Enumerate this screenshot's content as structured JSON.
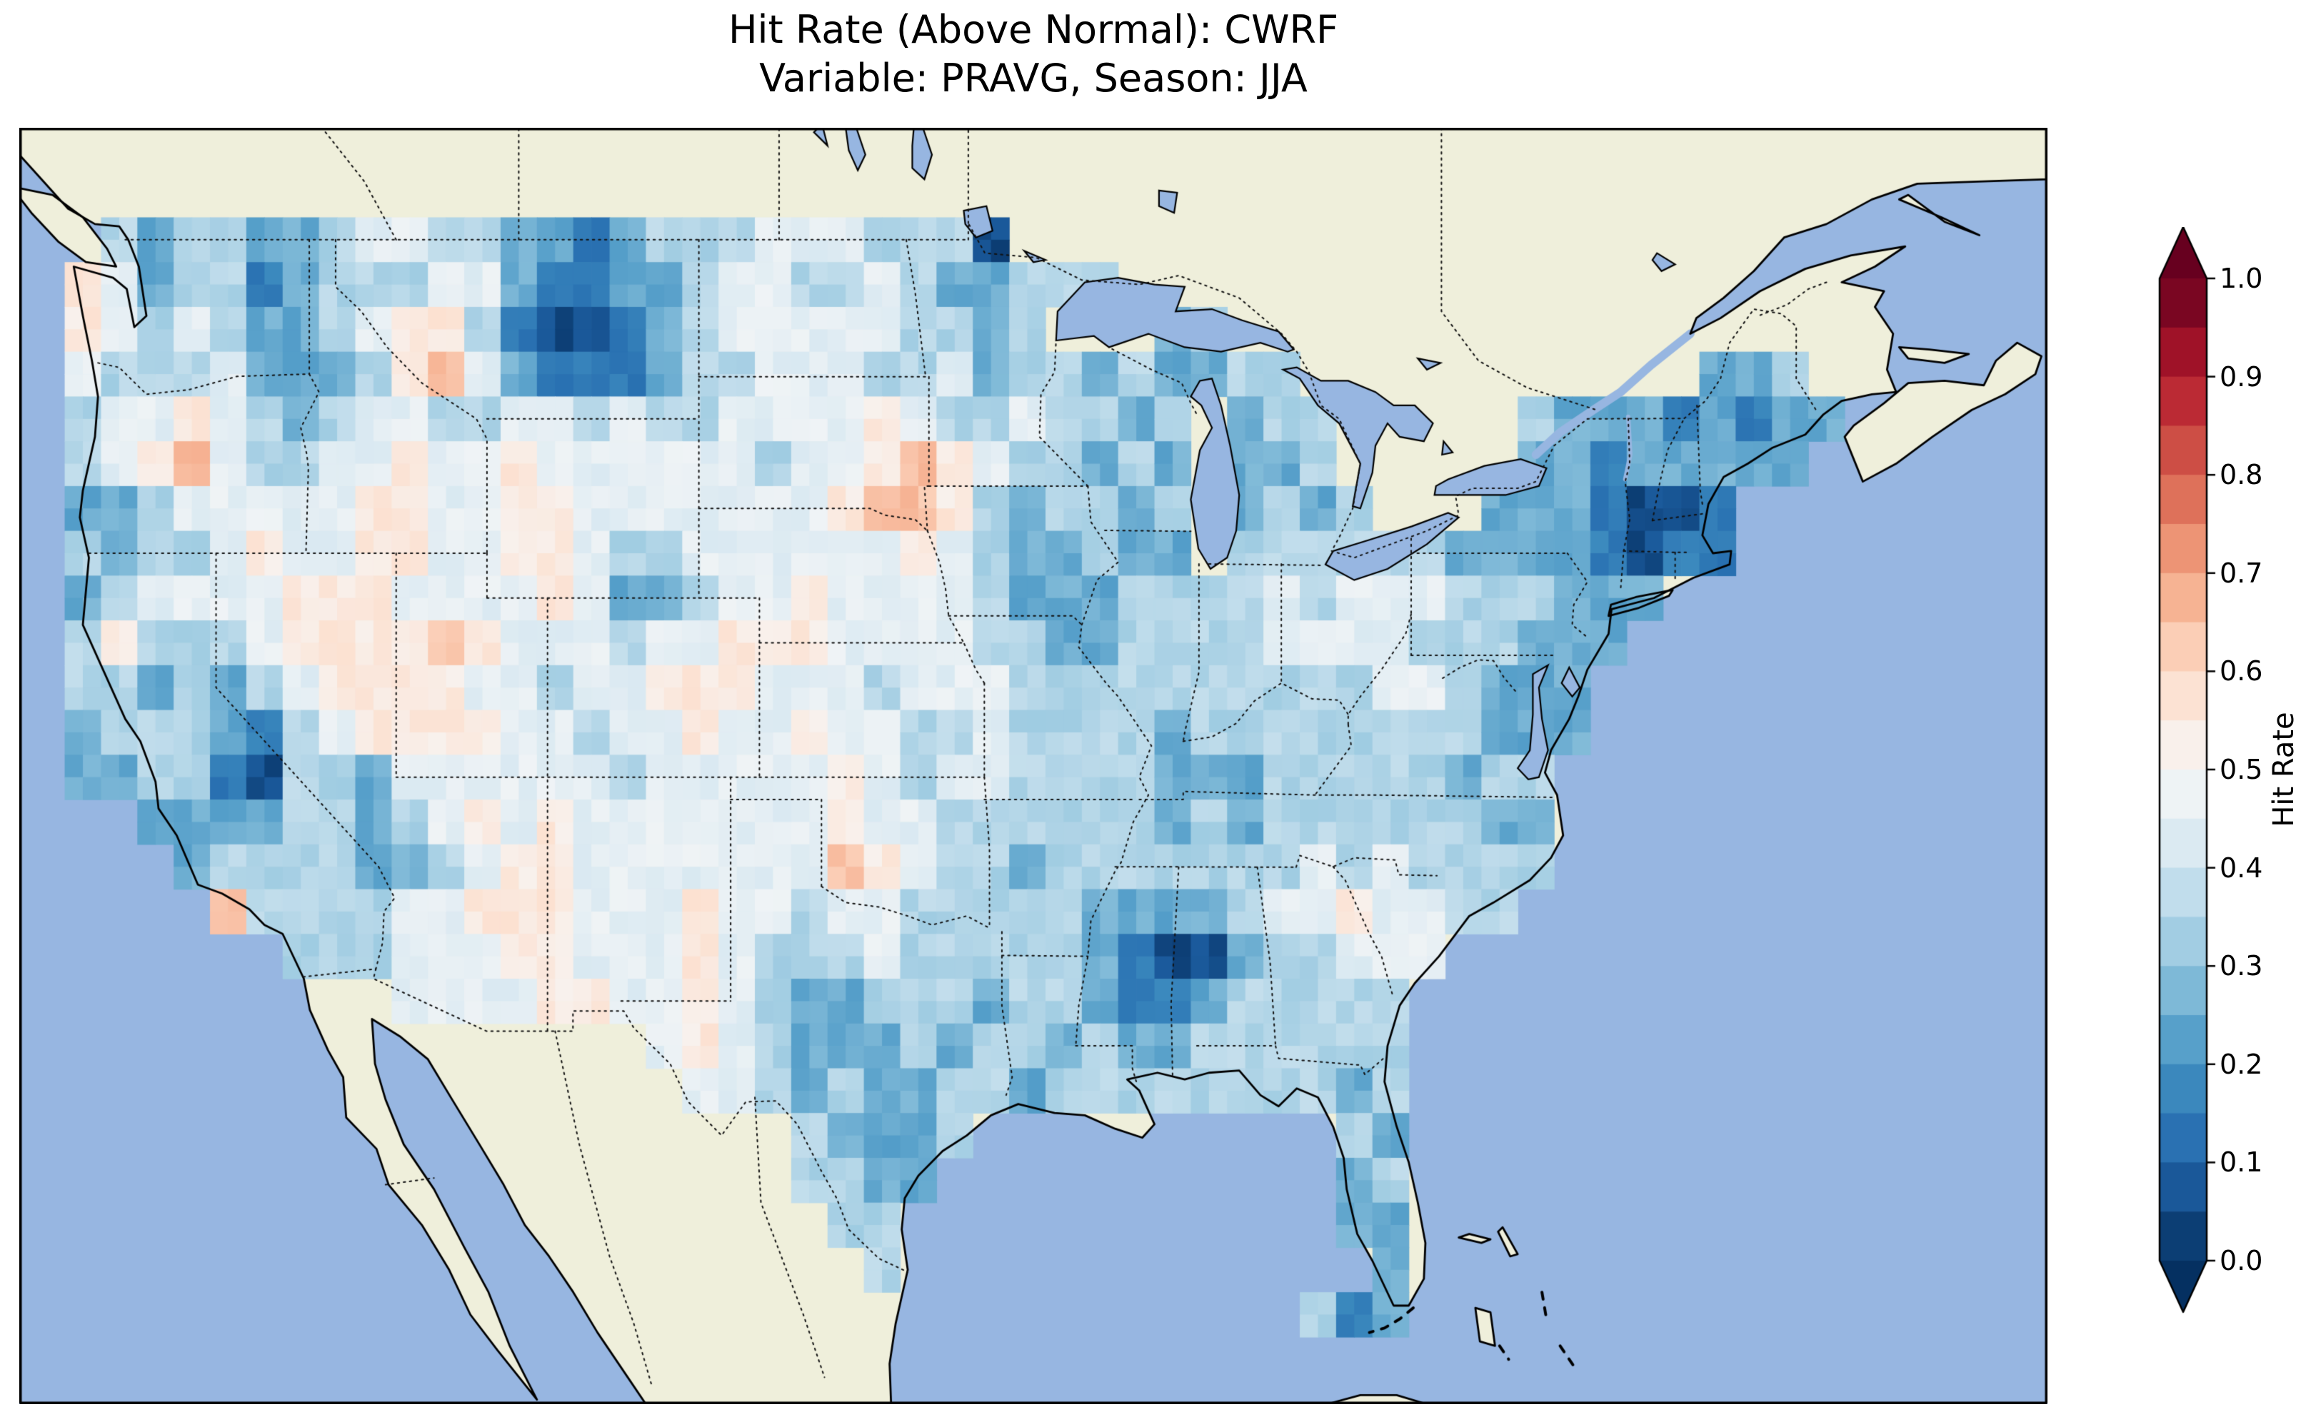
{
  "figure": {
    "title_line1": "Hit Rate (Above Normal): CWRF",
    "title_line2": "Variable: PRAVG, Season: JJA"
  },
  "colorbar": {
    "label": "Hit Rate",
    "ticks": [
      "1.0",
      "0.9",
      "0.8",
      "0.7",
      "0.6",
      "0.5",
      "0.4",
      "0.3",
      "0.2",
      "0.1",
      "0.0"
    ],
    "vmin": 0.0,
    "vmax": 1.0,
    "n_bands": 20,
    "extend": "both",
    "colormap": "RdBu_r",
    "colormap_anchors": [
      "#053061",
      "#2166ac",
      "#4393c3",
      "#92c5de",
      "#d1e5f0",
      "#f7f7f7",
      "#fddbc7",
      "#f4a582",
      "#d6604d",
      "#b2182b",
      "#67001f"
    ]
  },
  "map": {
    "ocean_color": "#97b6e1",
    "land_color": "#efefdb",
    "lake_color": "#97b6e1",
    "coast_color": "#000000",
    "border_color": "#111111",
    "extent": {
      "lon_min": -126.5,
      "lon_max": -59.5,
      "lat_min": 23.0,
      "lat_max": 51.5
    }
  },
  "chart_data": {
    "type": "heatmap",
    "metric": "Hit Rate (Above Normal)",
    "model": "CWRF",
    "variable": "PRAVG",
    "season": "JJA",
    "title": "Hit Rate (Above Normal): CWRF\nVariable: PRAVG, Season: JJA",
    "colorbar_label": "Hit Rate",
    "vmin": 0.0,
    "vmax": 1.0,
    "region": "Contiguous United States",
    "grid": {
      "lon_start": -125.0,
      "lon_step": 1.2,
      "lat_start": 49.5,
      "lat_step": -1.0,
      "value_encoding": {
        ".": null,
        "0": 0.05,
        "1": 0.15,
        "2": 0.25,
        "3": 0.35,
        "4": 0.45,
        "5": 0.55,
        "6": 0.65,
        "7": 0.75
      },
      "rows": [
        ".3233223443322123334443330........................",
        "54233123334421122344334322333.....................",
        "543432234553100123444443323...23..................",
        "4333422235642111233444334233232233...........223..",
        "3445432344334434334444543343323.233.....322212122.",
        "3456433445445444444344565433232.223.....22122222..",
        "2234444455445544444445665323323.2323...2221001....",
        "3233454455445543344444454322322.33333322221011....",
        "23444455544445422344544443222333343444333222......",
        "3533345555654443445554444332233334444333222.......",
        "332323455554434455544434443333333333443222........",
        "233321345555443445445443343333233333333222........",
        "22331033244444434444454344333322233333233.........",
        "..222233234545444444454433333323233333322.........",
        "...23333223455444444465433233333334343333.........",
        "....633334455544454434433333222234454433..........",
        "......33344455444543334333332100233444............",
        ".........4444554454322333233211233333.............",
        "................454322232332322333333.............",
        ".................44323223323333333323.............",
        "....................32223..........32.............",
        "....................3322...........23.............",
        ".....................33............22.............",
        "......................3.............2.............",
        "..................................312.............",
        ".................................................."
      ]
    }
  }
}
